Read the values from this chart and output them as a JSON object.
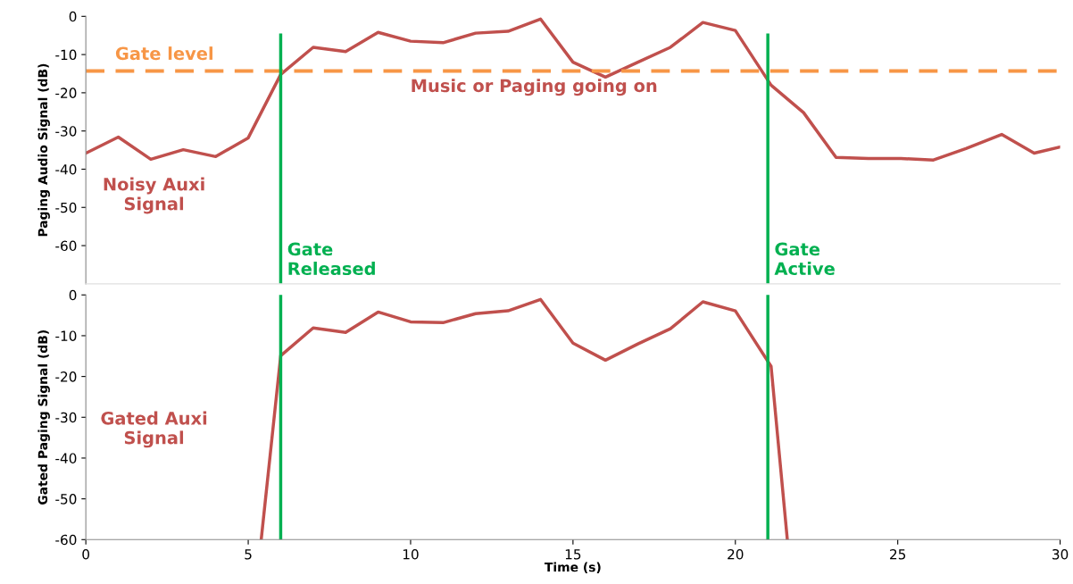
{
  "chart_data": [
    {
      "type": "line",
      "ylabel": "Paging Audio Signal (dB)",
      "ylim": [
        -70,
        0
      ],
      "yticks": [
        -60,
        -50,
        -40,
        -30,
        -20,
        -10,
        0
      ],
      "xlim": [
        0,
        30
      ],
      "xticks": [
        0,
        5,
        10,
        15,
        20,
        25,
        30
      ],
      "tick_labels": "y",
      "grid": false,
      "legend": false,
      "marker": "none",
      "line_style": "solid",
      "series": [
        {
          "color": "#c0504d",
          "x": [
            0,
            1,
            2,
            3,
            4,
            5,
            6,
            7,
            8,
            9,
            10,
            11,
            12,
            13,
            14,
            15,
            16,
            17,
            18,
            19,
            20,
            21.1,
            22.1,
            23.1,
            24.1,
            25.1,
            26.1,
            27.1,
            28.2,
            29.2,
            30
          ],
          "values": [
            -35.8,
            -31.6,
            -37.4,
            -34.9,
            -36.7,
            -31.8,
            -15.2,
            -8.1,
            -9.2,
            -4.2,
            -6.5,
            -6.9,
            -4.4,
            -3.9,
            -0.7,
            -12,
            -15.9,
            -12,
            -8.1,
            -1.6,
            -3.7,
            -18,
            -25.2,
            -36.9,
            -37.2,
            -37.2,
            -37.6,
            -34.6,
            -30.9,
            -35.8,
            -34.2
          ]
        }
      ],
      "ref_lines": [
        {
          "axis": "y",
          "value": -14.3,
          "label": "Gate level",
          "color": "#f79646",
          "line_style": "dashed"
        },
        {
          "axis": "x",
          "value": 6,
          "label": "Gate\nReleased",
          "color": "#00b050",
          "line_style": "solid"
        },
        {
          "axis": "x",
          "value": 21,
          "label": "Gate\nActive",
          "color": "#00b050",
          "line_style": "solid"
        }
      ],
      "annotations": [
        "Music or Paging going on",
        "Noisy Auxi\nSignal"
      ]
    },
    {
      "type": "line",
      "ylabel": "Gated Paging Signal (dB)",
      "xlabel": "Time (s)",
      "ylim": [
        -60,
        0
      ],
      "yticks": [
        -60,
        -50,
        -40,
        -30,
        -20,
        -10,
        0
      ],
      "xlim": [
        0,
        30
      ],
      "xticks": [
        0,
        5,
        10,
        15,
        20,
        25,
        30
      ],
      "grid": false,
      "legend": false,
      "marker": "none",
      "line_style": "solid",
      "series": [
        {
          "color": "#c0504d",
          "x": [
            5.4,
            6,
            7,
            8,
            9,
            10,
            11,
            12,
            13,
            14,
            15,
            16,
            17,
            18,
            19,
            20,
            21.1,
            21.6
          ],
          "values": [
            -60,
            -14.9,
            -8.1,
            -9.2,
            -4.2,
            -6.6,
            -6.8,
            -4.6,
            -3.9,
            -1.1,
            -11.8,
            -16,
            -12,
            -8.3,
            -1.7,
            -3.9,
            -17.5,
            -60
          ]
        }
      ],
      "ref_lines": [
        {
          "axis": "x",
          "value": 6,
          "color": "#00b050",
          "line_style": "solid"
        },
        {
          "axis": "x",
          "value": 21,
          "color": "#00b050",
          "line_style": "solid"
        }
      ],
      "annotations": [
        "Gated Auxi\nSignal"
      ]
    }
  ]
}
